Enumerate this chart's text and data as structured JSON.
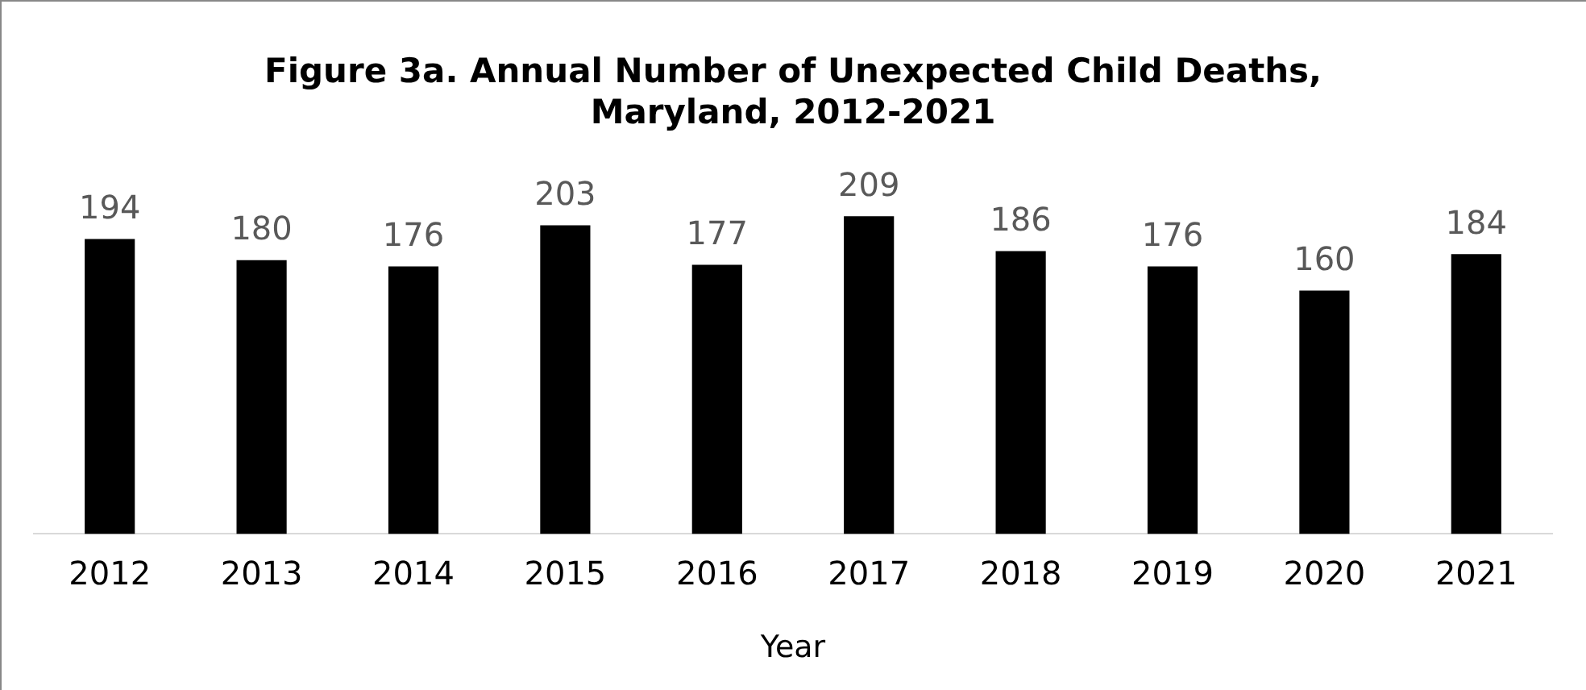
{
  "chart_data": {
    "type": "bar",
    "title": "Figure 3a. Annual Number of Unexpected Child Deaths, Maryland, 2012-2021",
    "xlabel": "Year",
    "categories": [
      "2012",
      "2013",
      "2014",
      "2015",
      "2016",
      "2017",
      "2018",
      "2019",
      "2020",
      "2021"
    ],
    "values": [
      194,
      180,
      176,
      203,
      177,
      209,
      186,
      176,
      160,
      184
    ],
    "color": "#000000",
    "data_labels": true,
    "grid": false,
    "legend": false,
    "tick_labels": "x"
  }
}
